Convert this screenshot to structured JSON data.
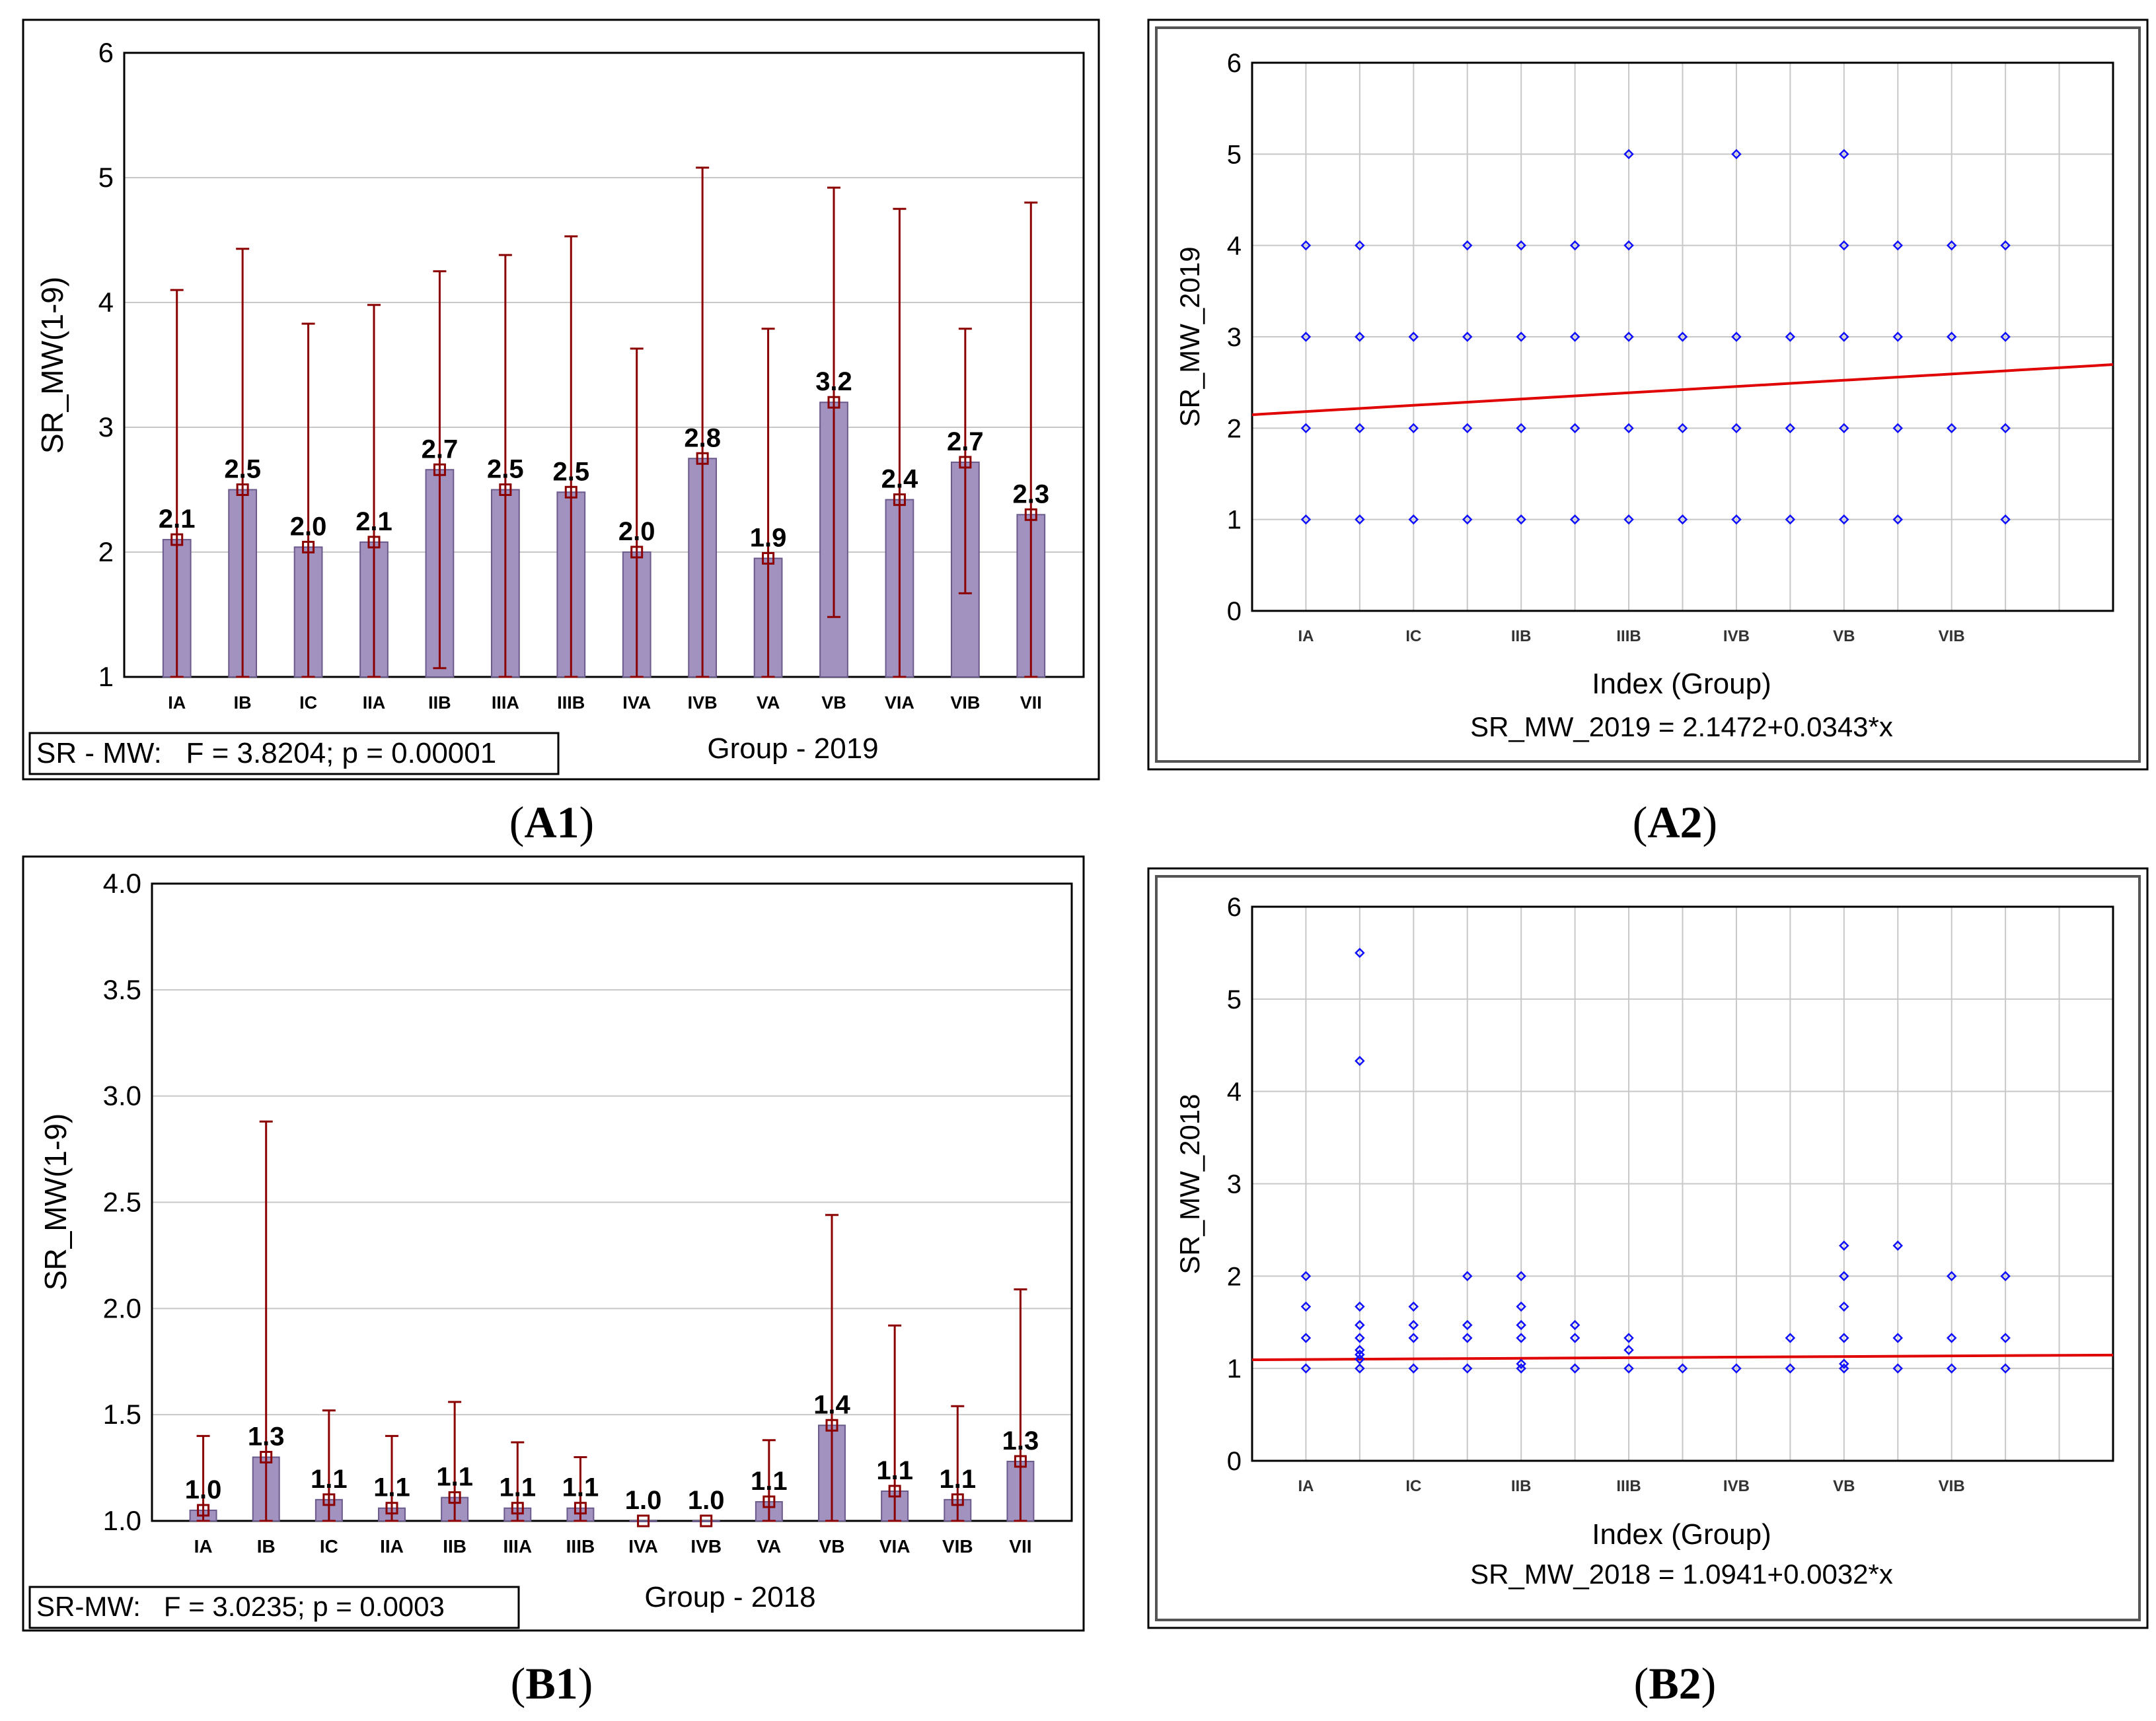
{
  "colors": {
    "bar": "#a292bf",
    "bar_edge": "#6b5a8c",
    "whisker": "#8b0000",
    "point": "#1010ff",
    "fit_line": "#e00000",
    "grid": "#c8c8c8"
  },
  "chart_data": [
    {
      "id": "A1",
      "panel_label": "A1",
      "type": "bar",
      "xlabel": "Group - 2019",
      "ylabel": "SR_MW(1-9)",
      "stat_box": "SR - MW:   F = 3.8204; p = 0.00001",
      "ylim": [
        1,
        6
      ],
      "yticks": [
        "1",
        "2",
        "3",
        "4",
        "5",
        "6"
      ],
      "categories": [
        "IA",
        "IB",
        "IC",
        "IIA",
        "IIB",
        "IIIA",
        "IIIB",
        "IVA",
        "IVB",
        "VA",
        "VB",
        "VIA",
        "VIB",
        "VII"
      ],
      "values": [
        2.1,
        2.5,
        2.04,
        2.08,
        2.66,
        2.5,
        2.48,
        2.0,
        2.75,
        1.95,
        3.2,
        2.42,
        2.72,
        2.3
      ],
      "labels": [
        "2.1",
        "2.5",
        "2.0",
        "2.1",
        "2.7",
        "2.5",
        "2.5",
        "2.0",
        "2.8",
        "1.9",
        "3.2",
        "2.4",
        "2.7",
        "2.3"
      ],
      "err_low": [
        1.0,
        1.0,
        1.0,
        1.0,
        1.07,
        1.0,
        1.0,
        1.0,
        1.0,
        1.0,
        1.48,
        1.0,
        1.67,
        1.0
      ],
      "err_high": [
        4.1,
        4.43,
        3.83,
        3.98,
        4.25,
        4.38,
        4.53,
        3.63,
        5.08,
        3.79,
        4.92,
        4.75,
        3.79,
        4.8
      ]
    },
    {
      "id": "A2",
      "panel_label": "A2",
      "type": "scatter",
      "xlabel": "Index (Group)",
      "ylabel": "SR_MW_2019",
      "equation": "SR_MW_2019 = 2.1472+0.0343*x",
      "ylim": [
        0,
        6
      ],
      "xlim": [
        0,
        16
      ],
      "yticks": [
        "0",
        "1",
        "2",
        "3",
        "4",
        "5",
        "6"
      ],
      "xtick_labels": [
        "IA",
        "IC",
        "IIB",
        "IIIB",
        "IVB",
        "VB",
        "VIB"
      ],
      "xtick_positions": [
        1,
        3,
        5,
        7,
        9,
        11,
        13
      ],
      "fit": {
        "intercept": 2.1472,
        "slope": 0.0343
      },
      "x": [
        1,
        1,
        1,
        1,
        2,
        2,
        2,
        2,
        3,
        3,
        3,
        4,
        4,
        4,
        4,
        5,
        5,
        5,
        5,
        6,
        6,
        6,
        6,
        7,
        7,
        7,
        7,
        7,
        8,
        8,
        8,
        9,
        9,
        9,
        9,
        10,
        10,
        10,
        11,
        11,
        11,
        11,
        11,
        12,
        12,
        12,
        12,
        13,
        13,
        13,
        14,
        14,
        14,
        14
      ],
      "y": [
        1,
        2,
        3,
        4,
        1,
        2,
        3,
        4,
        1,
        2,
        3,
        1,
        2,
        3,
        4,
        1,
        2,
        3,
        4,
        1,
        2,
        3,
        4,
        1,
        2,
        3,
        4,
        5,
        1,
        2,
        3,
        1,
        2,
        3,
        5,
        1,
        2,
        3,
        1,
        2,
        3,
        4,
        5,
        1,
        2,
        3,
        4,
        2,
        3,
        4,
        1,
        2,
        3,
        4
      ]
    },
    {
      "id": "B1",
      "panel_label": "B1",
      "type": "bar",
      "xlabel": "Group - 2018",
      "ylabel": "SR_MW(1-9)",
      "stat_box": "SR-MW:   F = 3.0235; p = 0.0003",
      "ylim": [
        1.0,
        4.0
      ],
      "yticks": [
        "1.0",
        "1.5",
        "2.0",
        "2.5",
        "3.0",
        "3.5",
        "4.0"
      ],
      "categories": [
        "IA",
        "IB",
        "IC",
        "IIA",
        "IIB",
        "IIIA",
        "IIIB",
        "IVA",
        "IVB",
        "VA",
        "VB",
        "VIA",
        "VIB",
        "VII"
      ],
      "values": [
        1.05,
        1.3,
        1.1,
        1.06,
        1.11,
        1.06,
        1.06,
        1.0,
        1.0,
        1.09,
        1.45,
        1.14,
        1.1,
        1.28
      ],
      "labels": [
        "1.0",
        "1.3",
        "1.1",
        "1.1",
        "1.1",
        "1.1",
        "1.1",
        "1.0",
        "1.0",
        "1.1",
        "1.4",
        "1.1",
        "1.1",
        "1.3"
      ],
      "err_low": [
        1.0,
        1.0,
        1.0,
        1.0,
        1.0,
        1.0,
        1.0,
        1.0,
        1.0,
        1.0,
        1.0,
        1.0,
        1.0,
        1.0
      ],
      "err_high": [
        1.4,
        2.88,
        1.52,
        1.4,
        1.56,
        1.37,
        1.3,
        1.0,
        1.0,
        1.38,
        2.44,
        1.92,
        1.54,
        2.09
      ]
    },
    {
      "id": "B2",
      "panel_label": "B2",
      "type": "scatter",
      "xlabel": "Index (Group)",
      "ylabel": "SR_MW_2018",
      "equation": "SR_MW_2018 = 1.0941+0.0032*x",
      "ylim": [
        0,
        6
      ],
      "xlim": [
        0,
        16
      ],
      "yticks": [
        "0",
        "1",
        "2",
        "3",
        "4",
        "5",
        "6"
      ],
      "xtick_labels": [
        "IA",
        "IC",
        "IIB",
        "IIIB",
        "IVB",
        "VB",
        "VIB"
      ],
      "xtick_positions": [
        1,
        3,
        5,
        7,
        9,
        11,
        13
      ],
      "fit": {
        "intercept": 1.0941,
        "slope": 0.0032
      },
      "x": [
        1,
        1,
        1,
        1,
        2,
        2,
        2,
        2,
        2,
        2,
        2,
        2,
        2,
        3,
        3,
        3,
        3,
        4,
        4,
        4,
        4,
        5,
        5,
        5,
        5,
        5,
        5,
        6,
        6,
        6,
        7,
        7,
        7,
        8,
        9,
        10,
        10,
        11,
        11,
        11,
        11,
        11,
        11,
        12,
        12,
        12,
        13,
        13,
        13,
        14,
        14,
        14
      ],
      "y": [
        1,
        1.33,
        1.67,
        2,
        1,
        1.1,
        1.2,
        1.33,
        1.47,
        1.67,
        4.33,
        5.5,
        1.15,
        1,
        1.33,
        1.47,
        1.67,
        1,
        1.33,
        1.47,
        2,
        1,
        1.05,
        1.33,
        1.47,
        1.67,
        2,
        1,
        1.33,
        1.47,
        1,
        1.2,
        1.33,
        1,
        1,
        1,
        1.33,
        1,
        1.33,
        1.67,
        2,
        2.33,
        1.05,
        1,
        1.33,
        2.33,
        1,
        1.33,
        2,
        1,
        1.33,
        2
      ]
    }
  ]
}
